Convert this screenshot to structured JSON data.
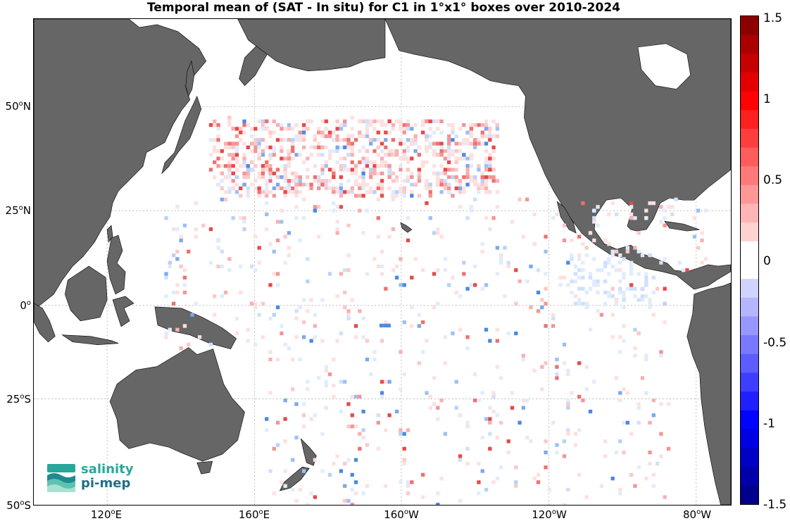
{
  "title": "Temporal mean of (SAT - In situ) for C1 in 1°x1° boxes over 2010-2024",
  "lat_ticks": [
    {
      "deg": "50",
      "hem": "N",
      "lat": 50
    },
    {
      "deg": "25",
      "hem": "N",
      "lat": 25
    },
    {
      "deg": "0",
      "hem": "",
      "lat": 0
    },
    {
      "deg": "25",
      "hem": "S",
      "lat": -25
    },
    {
      "deg": "50",
      "hem": "S",
      "lat": -50
    }
  ],
  "lon_ticks": [
    {
      "deg": "120",
      "hem": "E",
      "lon": 120
    },
    {
      "deg": "160",
      "hem": "E",
      "lon": 160
    },
    {
      "deg": "160",
      "hem": "W",
      "lon": 200
    },
    {
      "deg": "120",
      "hem": "W",
      "lon": 240
    },
    {
      "deg": "80",
      "hem": "W",
      "lon": 280
    }
  ],
  "colorbar": {
    "min": -1.5,
    "max": 1.5,
    "tick_labels": [
      "1.5",
      "1",
      "0.5",
      "0",
      "-0.5",
      "-1",
      "-1.5"
    ],
    "tick_values": [
      1.5,
      1,
      0.5,
      0,
      -0.5,
      -1,
      -1.5
    ],
    "colors": [
      "#7f0000",
      "#ff0000",
      "#ffffff",
      "#0000ff",
      "#00007f"
    ]
  },
  "logo": {
    "line1": "salinity",
    "line2": "pi-mep"
  },
  "colors": {
    "land": "#666666",
    "ocean": "#ffffff",
    "grid": "#b0b0b0"
  }
}
